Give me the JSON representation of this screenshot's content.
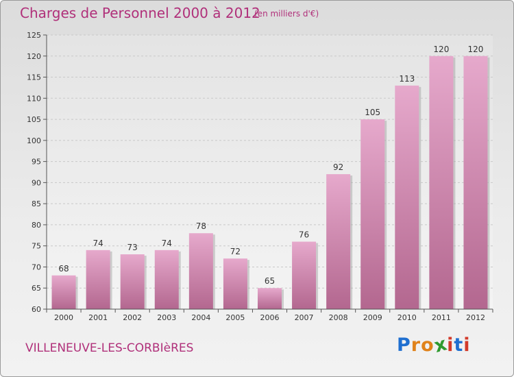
{
  "header": {
    "title": "Charges de Personnel 2000 à 2012",
    "subtitle": "(en milliers d'€)"
  },
  "footer": {
    "place": "VILLENEUVE-LES-CORBIèRES",
    "logo_letters": [
      "P",
      "r",
      "o",
      "x",
      "i",
      "t",
      "i"
    ]
  },
  "colors": {
    "title": "#b0307a",
    "bar_top": "#e6a9cc",
    "bar_bottom": "#b3678f",
    "logo": [
      "#1f6fd0",
      "#e0821a",
      "#e0821a",
      "#2f9a2f",
      "#d23a2a",
      "#1f6fd0",
      "#d23a2a"
    ]
  },
  "chart_data": {
    "type": "bar",
    "title": "Charges de Personnel 2000 à 2012",
    "subtitle": "(en milliers d'€)",
    "categories": [
      "2000",
      "2001",
      "2002",
      "2003",
      "2004",
      "2005",
      "2006",
      "2007",
      "2008",
      "2009",
      "2010",
      "2011",
      "2012"
    ],
    "values": [
      68,
      74,
      73,
      74,
      78,
      72,
      65,
      76,
      92,
      105,
      113,
      120,
      120
    ],
    "ylim": [
      60,
      125
    ],
    "yticks": [
      60,
      65,
      70,
      75,
      80,
      85,
      90,
      95,
      100,
      105,
      110,
      115,
      120,
      125
    ],
    "grid": true,
    "xlabel": "",
    "ylabel": ""
  }
}
